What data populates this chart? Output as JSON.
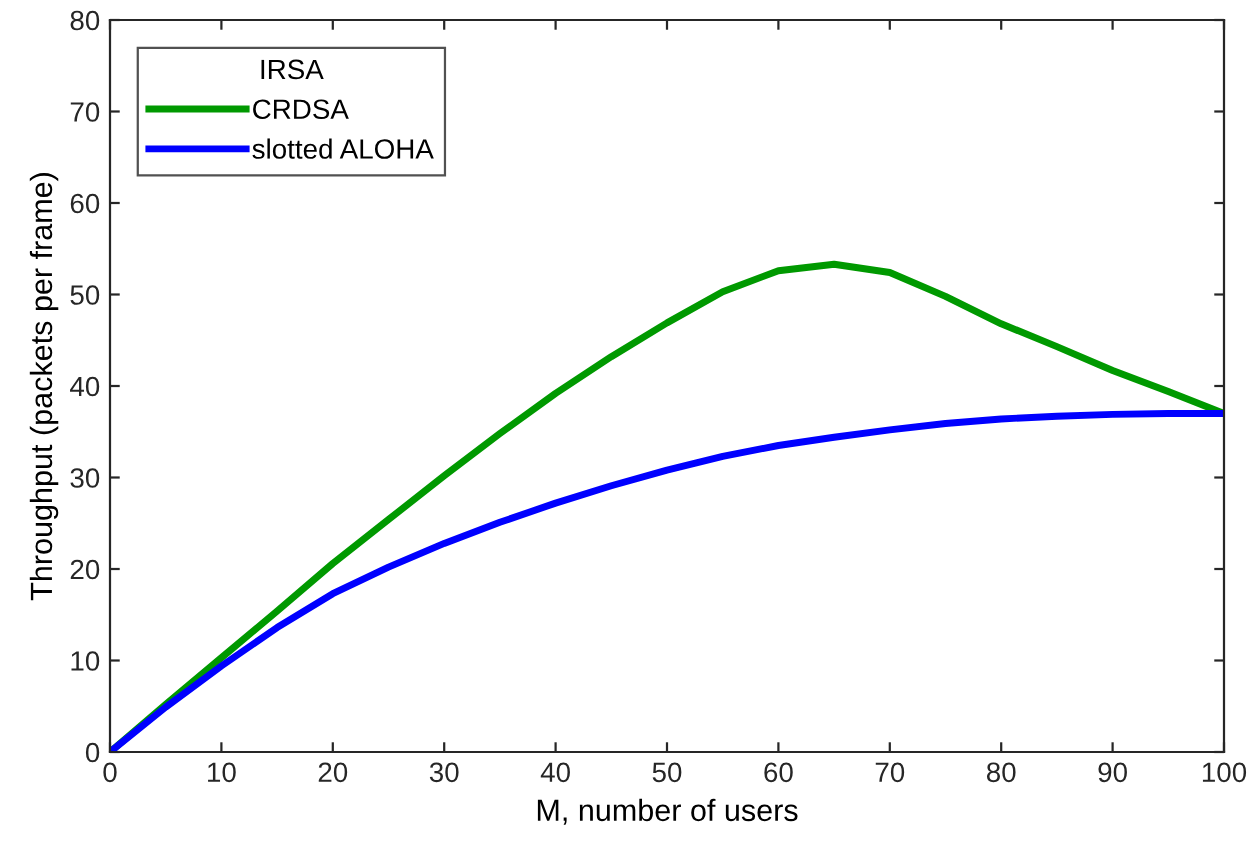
{
  "chart_data": {
    "type": "line",
    "xlabel": "M, number of users",
    "ylabel": "Throughput (packets per frame)",
    "legend_title": "IRSA",
    "x": [
      0,
      5,
      10,
      15,
      20,
      25,
      30,
      35,
      40,
      45,
      50,
      55,
      60,
      65,
      70,
      75,
      80,
      85,
      90,
      95,
      100
    ],
    "series": [
      {
        "name": "CRDSA",
        "color": "#009900",
        "values": [
          0,
          5.2,
          10.3,
          15.4,
          20.6,
          25.4,
          30.2,
          34.8,
          39.2,
          43.2,
          46.9,
          50.3,
          52.6,
          53.3,
          52.4,
          49.8,
          46.8,
          44.3,
          41.7,
          39.4,
          37.0
        ]
      },
      {
        "name": "slotted ALOHA",
        "color": "#0000ff",
        "values": [
          0,
          4.9,
          9.4,
          13.6,
          17.3,
          20.2,
          22.8,
          25.1,
          27.2,
          29.1,
          30.8,
          32.3,
          33.5,
          34.4,
          35.2,
          35.9,
          36.4,
          36.7,
          36.9,
          37.0,
          37.0
        ]
      }
    ],
    "xlim": [
      0,
      100
    ],
    "xticks": [
      0,
      10,
      20,
      30,
      40,
      50,
      60,
      70,
      80,
      90,
      100
    ],
    "ylim": [
      0,
      80
    ],
    "yticks": [
      0,
      10,
      20,
      30,
      40,
      50,
      60,
      70,
      80
    ],
    "legend": "top left",
    "grid": false
  }
}
